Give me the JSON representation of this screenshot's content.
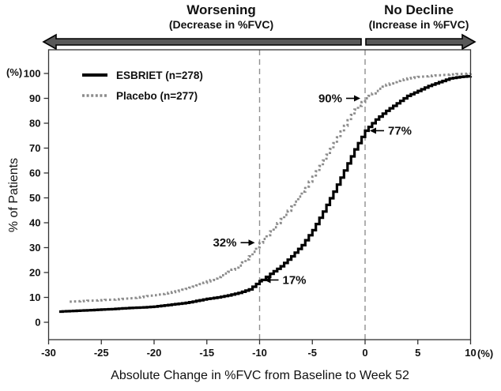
{
  "header": {
    "worsening_title": "Worsening",
    "worsening_subtitle": "(Decrease in %FVC)",
    "no_decline_title": "No Decline",
    "no_decline_subtitle": "(Increase in %FVC)"
  },
  "chart_data": {
    "type": "line",
    "subtype": "cumulative-distribution",
    "xlabel": "Absolute Change in %FVC from Baseline to Week 52",
    "ylabel": "% of Patients",
    "x_unit": "(%)",
    "y_unit": "(%)",
    "xlim": [
      -30,
      10
    ],
    "ylim": [
      0,
      100
    ],
    "x_ticks": [
      "-30",
      "-25",
      "-20",
      "-15",
      "-10",
      "-5",
      "0",
      "5",
      "10"
    ],
    "x_tick_values": [
      -30,
      -25,
      -20,
      -15,
      -10,
      -5,
      0,
      5,
      10
    ],
    "y_ticks": [
      "0",
      "10",
      "20",
      "30",
      "40",
      "50",
      "60",
      "70",
      "80",
      "90",
      "100"
    ],
    "y_tick_values": [
      0,
      10,
      20,
      30,
      40,
      50,
      60,
      70,
      80,
      90,
      100
    ],
    "grid": false,
    "legend_position": "top-left",
    "reference_lines_x": [
      -10,
      0
    ],
    "series": [
      {
        "name": "ESBRIET (n=278)",
        "style": "solid",
        "color": "#000000",
        "points": [
          [
            -29,
            4.3
          ],
          [
            -28,
            4.5
          ],
          [
            -27,
            4.7
          ],
          [
            -26,
            4.9
          ],
          [
            -25,
            5.1
          ],
          [
            -24,
            5.3
          ],
          [
            -23,
            5.6
          ],
          [
            -22,
            5.8
          ],
          [
            -21,
            6.0
          ],
          [
            -20,
            6.3
          ],
          [
            -19,
            6.8
          ],
          [
            -18,
            7.3
          ],
          [
            -17,
            7.8
          ],
          [
            -16,
            8.6
          ],
          [
            -15,
            9.4
          ],
          [
            -14,
            10.0
          ],
          [
            -13,
            10.8
          ],
          [
            -12,
            11.8
          ],
          [
            -11,
            13.2
          ],
          [
            -10,
            16.5
          ],
          [
            -9.8,
            17.0
          ],
          [
            -9,
            19.5
          ],
          [
            -8,
            22.5
          ],
          [
            -7,
            26.5
          ],
          [
            -6,
            31.0
          ],
          [
            -5,
            37.0
          ],
          [
            -4,
            44.5
          ],
          [
            -3,
            52.5
          ],
          [
            -2,
            61.0
          ],
          [
            -1,
            69.5
          ],
          [
            0,
            77.0
          ],
          [
            1,
            81.5
          ],
          [
            2,
            85.0
          ],
          [
            3,
            88.0
          ],
          [
            4,
            91.0
          ],
          [
            5,
            93.0
          ],
          [
            6,
            95.0
          ],
          [
            7,
            96.5
          ],
          [
            8,
            98.0
          ],
          [
            9,
            98.6
          ],
          [
            10,
            99.0
          ]
        ]
      },
      {
        "name": "Placebo (n=277)",
        "style": "dotted",
        "color": "#8c8c8c",
        "points": [
          [
            -28,
            8.3
          ],
          [
            -27,
            8.5
          ],
          [
            -26,
            8.7
          ],
          [
            -25,
            8.9
          ],
          [
            -24,
            9.1
          ],
          [
            -23,
            9.4
          ],
          [
            -22,
            9.8
          ],
          [
            -21,
            10.3
          ],
          [
            -20,
            10.9
          ],
          [
            -19,
            11.6
          ],
          [
            -18,
            12.4
          ],
          [
            -17,
            13.4
          ],
          [
            -16,
            14.8
          ],
          [
            -15,
            16.4
          ],
          [
            -14,
            18.2
          ],
          [
            -13,
            20.3
          ],
          [
            -12,
            22.8
          ],
          [
            -11,
            26.5
          ],
          [
            -10,
            32.0
          ],
          [
            -9,
            36.5
          ],
          [
            -8,
            41.5
          ],
          [
            -7,
            46.5
          ],
          [
            -6,
            52.5
          ],
          [
            -5,
            58.5
          ],
          [
            -4,
            65.0
          ],
          [
            -3,
            72.0
          ],
          [
            -2,
            79.0
          ],
          [
            -1,
            85.5
          ],
          [
            0,
            90.0
          ],
          [
            1,
            93.0
          ],
          [
            2,
            95.5
          ],
          [
            3,
            97.0
          ],
          [
            4,
            98.0
          ],
          [
            5,
            98.6
          ],
          [
            6,
            99.0
          ],
          [
            7,
            99.3
          ],
          [
            8,
            99.6
          ],
          [
            9,
            99.8
          ],
          [
            10,
            100.0
          ]
        ]
      }
    ],
    "annotations": [
      {
        "label": "90%",
        "x": 0,
        "y": 90,
        "text_side": "left"
      },
      {
        "label": "77%",
        "x": 0,
        "y": 77,
        "text_side": "right"
      },
      {
        "label": "32%",
        "x": -10,
        "y": 32,
        "text_side": "left"
      },
      {
        "label": "17%",
        "x": -10,
        "y": 17,
        "text_side": "right"
      }
    ]
  }
}
